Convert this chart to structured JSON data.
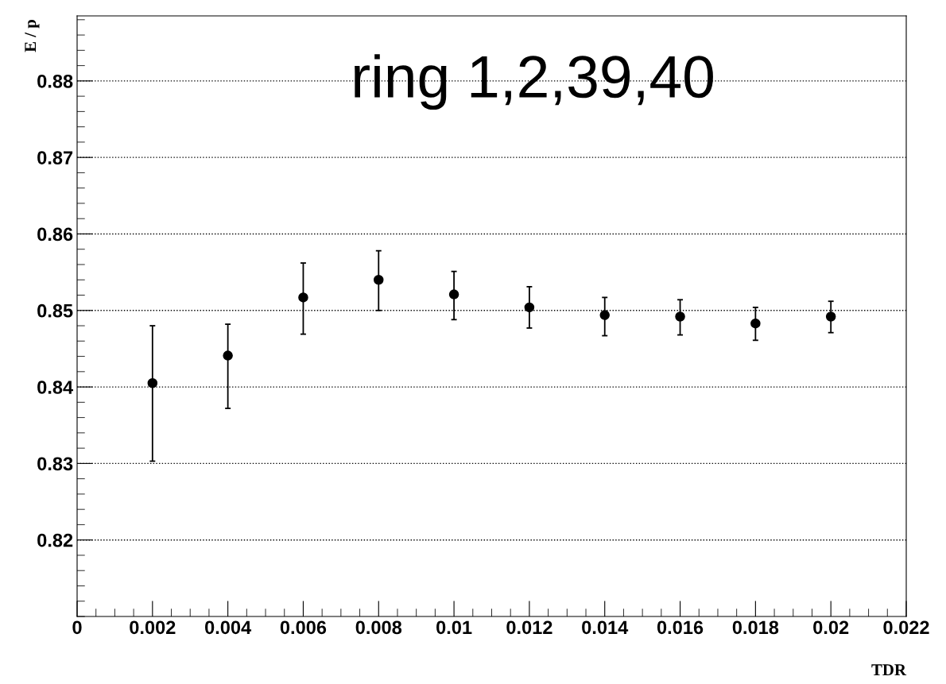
{
  "chart_data": {
    "type": "scatter",
    "xlabel": "TDR",
    "ylabel": "E / p",
    "annotations": [
      "ring 1,2,39,40"
    ],
    "x": [
      0.002,
      0.004,
      0.006,
      0.008,
      0.01,
      0.012,
      0.014,
      0.016,
      0.018,
      0.02
    ],
    "values": [
      0.8405,
      0.8441,
      0.8517,
      0.854,
      0.8521,
      0.8504,
      0.8494,
      0.8492,
      0.8483,
      0.8492
    ],
    "errors": [
      [
        0.8303,
        0.848
      ],
      [
        0.8372,
        0.8482
      ],
      [
        0.8469,
        0.8562
      ],
      [
        0.85,
        0.8578
      ],
      [
        0.8488,
        0.8551
      ],
      [
        0.8477,
        0.8531
      ],
      [
        0.8467,
        0.8517
      ],
      [
        0.8468,
        0.8514
      ],
      [
        0.8461,
        0.8504
      ],
      [
        0.8471,
        0.8512
      ]
    ],
    "color": "#000000",
    "marker": "circle",
    "xlim": [
      0,
      0.022
    ],
    "xticks": [
      0,
      0.002,
      0.004,
      0.006,
      0.008,
      0.01,
      0.012,
      0.014,
      0.016,
      0.018,
      0.02,
      0.022
    ],
    "ylim": [
      0.81,
      0.8885
    ],
    "yticks": [
      0.82,
      0.83,
      0.84,
      0.85,
      0.86,
      0.87,
      0.88
    ],
    "grid": "y"
  }
}
